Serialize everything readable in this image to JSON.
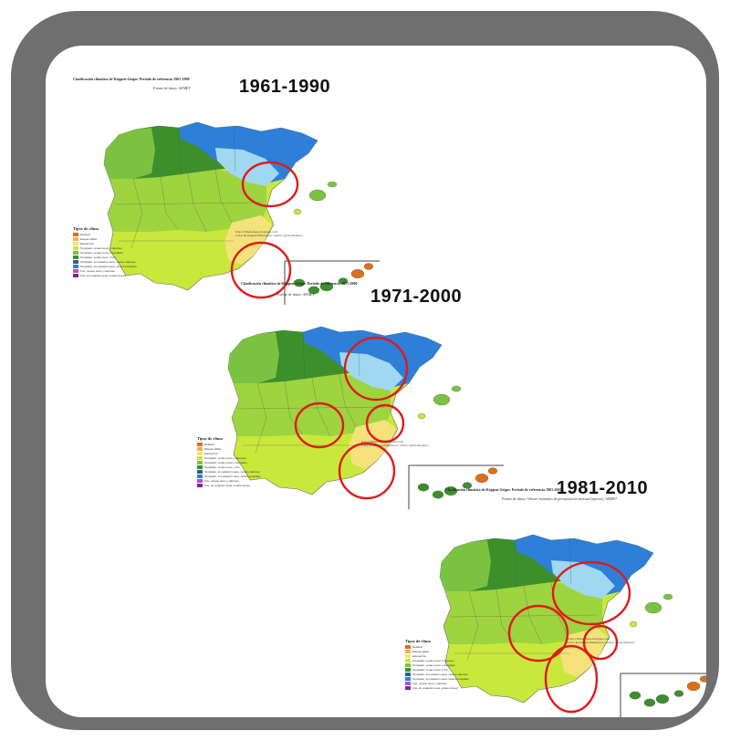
{
  "panels": [
    {
      "period": "1961-1990",
      "title": "Clasificación climática de Köppen-Geiger. Periodo de referencia 1961-1990",
      "source": "Fuente de datos: AEMET",
      "credit_line1": "http://climatomaps.blogspot.com",
      "credit_line2": "Cesar Rodriguez Ballesteros, twitter: @crballesteros"
    },
    {
      "period": "1971-2000",
      "title": "Clasificación climática de Köppen-Geiger. Periodo de referencia 1971-2000",
      "source": "Fuente de datos: AEMET",
      "credit_line1": "http://climatomaps.blogspot.com",
      "credit_line2": "Cesar Rodriguez Ballesteros, twitter: @crballesteros"
    },
    {
      "period": "1981-2010",
      "title": "Clasificación climática de Köppen-Geiger. Periodo de referencia 1981-2010",
      "source": "Fuente de datos: Valores normales de precipitación mensual (aproxs), AEMET",
      "credit_line1": "http://climatomaps.blogspot.com",
      "credit_line2": "Cesar Rodriguez Ballesteros, twitter: @crballesteros"
    }
  ],
  "legend": {
    "title": "Tipos de clima",
    "items": [
      {
        "label": "Desierto",
        "color": "#d9701c"
      },
      {
        "label": "Estepa cálida",
        "color": "#f0b24a"
      },
      {
        "label": "Estepa fría",
        "color": "#f4e27a"
      },
      {
        "label": "Templado, verano seco y caluroso",
        "color": "#c8e83c"
      },
      {
        "label": "Templado, verano seco y templado",
        "color": "#7cc242"
      },
      {
        "label": "Templado, verano seco y frío",
        "color": "#3d8f2c"
      },
      {
        "label": "Templado, sin estación seca, verano caluroso",
        "color": "#2e5f8f"
      },
      {
        "label": "Templado, sin estación seca, verano templado",
        "color": "#2e7fd8"
      },
      {
        "label": "Frío, verano seco y caluroso",
        "color": "#b04fc4"
      },
      {
        "label": "Frío, sin estación seca, verano fresco",
        "color": "#7a2a8a"
      }
    ]
  },
  "colors": {
    "frame": "#6f6f6f",
    "highlight_circle": "#e01a1a"
  }
}
